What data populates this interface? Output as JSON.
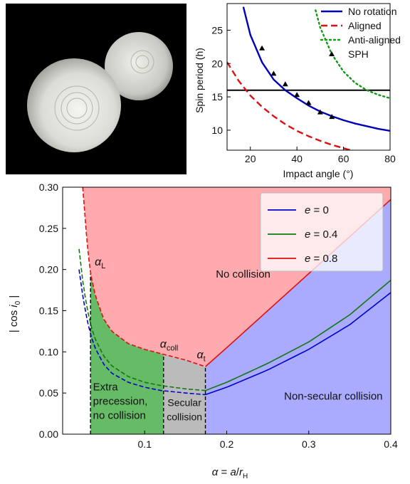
{
  "image": {
    "description_icon": "contact-binary-render"
  },
  "chart_data": [
    {
      "type": "line",
      "xlabel": "Impact angle (°)",
      "ylabel": "Spin period (h)",
      "xlim": [
        10,
        80
      ],
      "ylim": [
        7,
        29
      ],
      "xticks": [
        20,
        40,
        60,
        80
      ],
      "yticks": [
        10,
        15,
        20,
        25
      ],
      "grid": false,
      "legend_position": "top-right",
      "hline": 16,
      "series": [
        {
          "name": "No rotation",
          "style": "solid",
          "color": "#0000bb",
          "x": [
            17,
            20,
            25,
            30,
            35,
            40,
            45,
            50,
            55,
            60,
            65,
            70,
            75,
            80
          ],
          "y": [
            28.5,
            24.3,
            20.2,
            17.6,
            16.0,
            14.8,
            13.7,
            12.8,
            12.1,
            11.5,
            11.0,
            10.6,
            10.2,
            9.9
          ]
        },
        {
          "name": "Aligned",
          "style": "dashed",
          "color": "#dd1111",
          "x": [
            10,
            15,
            20,
            25,
            30,
            35,
            40,
            45,
            50,
            55,
            60,
            65
          ],
          "y": [
            20.2,
            17.4,
            15.2,
            13.5,
            12.1,
            10.9,
            9.9,
            9.1,
            8.4,
            7.8,
            7.3,
            6.8
          ]
        },
        {
          "name": "Anti-aligned",
          "style": "dotted",
          "color": "#119911",
          "x": [
            48,
            50,
            55,
            60,
            65,
            70,
            75,
            80
          ],
          "y": [
            28.0,
            25.4,
            21.4,
            18.8,
            17.1,
            16.0,
            15.3,
            14.8
          ]
        },
        {
          "name": "SPH",
          "style": "marker",
          "color": "#000000",
          "x": [
            25,
            30,
            35,
            40,
            45,
            50,
            55
          ],
          "y": [
            22.3,
            18.5,
            16.9,
            15.3,
            14.1,
            12.7,
            12.0
          ]
        }
      ]
    },
    {
      "type": "line",
      "xlabel_parts": [
        "α",
        " = ",
        "a",
        "/",
        "r",
        "H"
      ],
      "ylabel_parts": [
        "| cos ",
        "i",
        "0",
        " |"
      ],
      "xlim": [
        0.0,
        0.4
      ],
      "ylim": [
        0.0,
        0.3
      ],
      "xticks": [
        0.1,
        0.2,
        0.3,
        0.4
      ],
      "xtick_labels": [
        "0.1",
        "0.2",
        "0.3",
        "0.4"
      ],
      "yticks": [
        0.0,
        0.05,
        0.1,
        0.15,
        0.2,
        0.25,
        0.3
      ],
      "ytick_labels": [
        "0.00",
        "0.05",
        "0.10",
        "0.15",
        "0.20",
        "0.25",
        "0.30"
      ],
      "grid": false,
      "legend_position": "top-right",
      "region_colors": {
        "no_collision": "#ffaaaf",
        "extra_precession": "#66bb66",
        "secular": "#bbbbbb",
        "non_secular": "#aaaaff"
      },
      "verticals": [
        {
          "label": "α",
          "sub": "L",
          "x": 0.034
        },
        {
          "label": "α",
          "sub": "coll",
          "x": 0.123
        },
        {
          "label": "α",
          "sub": "t",
          "x": 0.174
        }
      ],
      "regions": {
        "no_collision": "No collision",
        "extra_precession": [
          "Extra",
          "precession,",
          "no collision"
        ],
        "secular": [
          "Secular",
          "collision"
        ],
        "non_secular": "Non-secular collision"
      },
      "series": [
        {
          "name_var": "e",
          "name_val": " = 0",
          "color": "#0000cc",
          "x": [
            0.02,
            0.025,
            0.03,
            0.035,
            0.04,
            0.05,
            0.06,
            0.08,
            0.1,
            0.12,
            0.15,
            0.174,
            0.2,
            0.25,
            0.3,
            0.35,
            0.4
          ],
          "y": [
            0.2,
            0.165,
            0.138,
            0.118,
            0.104,
            0.085,
            0.074,
            0.063,
            0.057,
            0.053,
            0.05,
            0.048,
            0.057,
            0.078,
            0.103,
            0.133,
            0.172
          ]
        },
        {
          "name_var": "e",
          "name_val": " = 0.4",
          "color": "#117711",
          "x": [
            0.02,
            0.025,
            0.03,
            0.035,
            0.04,
            0.05,
            0.06,
            0.08,
            0.1,
            0.12,
            0.15,
            0.174,
            0.2,
            0.25,
            0.3,
            0.35,
            0.4
          ],
          "y": [
            0.225,
            0.182,
            0.152,
            0.13,
            0.115,
            0.095,
            0.083,
            0.07,
            0.063,
            0.059,
            0.055,
            0.053,
            0.063,
            0.086,
            0.112,
            0.145,
            0.187
          ]
        },
        {
          "name_var": "e",
          "name_val": " = 0.8",
          "color": "#dd1111",
          "x": [
            0.0245,
            0.03,
            0.034,
            0.04,
            0.05,
            0.06,
            0.08,
            0.1,
            0.123,
            0.15,
            0.174,
            0.2,
            0.25,
            0.3,
            0.35,
            0.4
          ],
          "y": [
            0.3,
            0.23,
            0.195,
            0.168,
            0.14,
            0.125,
            0.11,
            0.103,
            0.097,
            0.09,
            0.082,
            0.105,
            0.15,
            0.195,
            0.24,
            0.285
          ]
        }
      ]
    }
  ]
}
